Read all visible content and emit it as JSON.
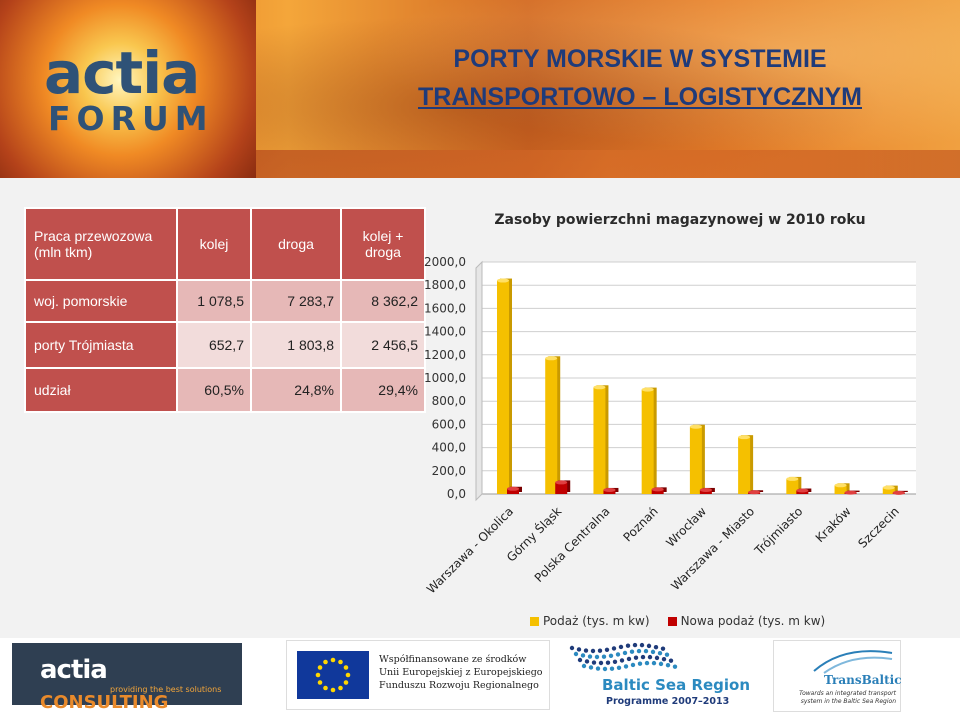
{
  "header": {
    "logo_top": "actia",
    "logo_bottom": "FORUM",
    "title_line1": "PORTY MORSKIE W SYSTEMIE",
    "title_line2": "TRANSPORTOWO – LOGISTYCZNYM"
  },
  "table": {
    "corner": "Praca przewozowa (mln tkm)",
    "columns": [
      "kolej",
      "droga",
      "kolej + droga"
    ],
    "rows": [
      {
        "label": "woj. pomorskie",
        "values": [
          "1 078,5",
          "7 283,7",
          "8 362,2"
        ]
      },
      {
        "label": "porty Trójmiasta",
        "values": [
          "652,7",
          "1 803,8",
          "2 456,5"
        ]
      },
      {
        "label": "udział",
        "values": [
          "60,5%",
          "24,8%",
          "29,4%"
        ]
      }
    ]
  },
  "colors": {
    "table_header": "#c0504d",
    "series1": "#f5c000",
    "series2": "#c00000",
    "title_blue": "#1f3b7a"
  },
  "chart_data": {
    "type": "bar",
    "title": "Zasoby powierzchni magazynowej w 2010 roku",
    "categories": [
      "Warszawa - Okolica",
      "Górny Śląsk",
      "Polska Centralna",
      "Poznań",
      "Wrocław",
      "Warszawa - Miasto",
      "Trójmiasto",
      "Kraków",
      "Szczecin"
    ],
    "series": [
      {
        "name": "Podaż (tys. m kw)",
        "values": [
          1840,
          1170,
          920,
          900,
          580,
          490,
          130,
          75,
          55
        ],
        "color": "#f5c000"
      },
      {
        "name": "Nowa podaż (tys. m kw)",
        "values": [
          45,
          100,
          35,
          40,
          35,
          15,
          30,
          12,
          10
        ],
        "color": "#c00000"
      }
    ],
    "ylim": [
      0,
      2000
    ],
    "yticks": [
      "0,0",
      "200,0",
      "400,0",
      "600,0",
      "800,0",
      "1000,0",
      "1200,0",
      "1400,0",
      "1600,0",
      "1800,0",
      "2000,0"
    ],
    "grid": true,
    "legend": "bottom"
  },
  "footer": {
    "actia_name": "actia",
    "actia_consulting": "CONSULTING",
    "actia_tagline": "providing the best solutions",
    "eu_text": "Współfinansowane ze środków Unii Europejskiej z Europejskiego Funduszu Rozwoju Regionalnego",
    "baltic_name": "Baltic Sea Region",
    "baltic_programme": "Programme 2007–2013",
    "transbaltic_name": "TransBaltic",
    "transbaltic_tagline": "Towards an integrated transport system in the Baltic Sea Region"
  }
}
